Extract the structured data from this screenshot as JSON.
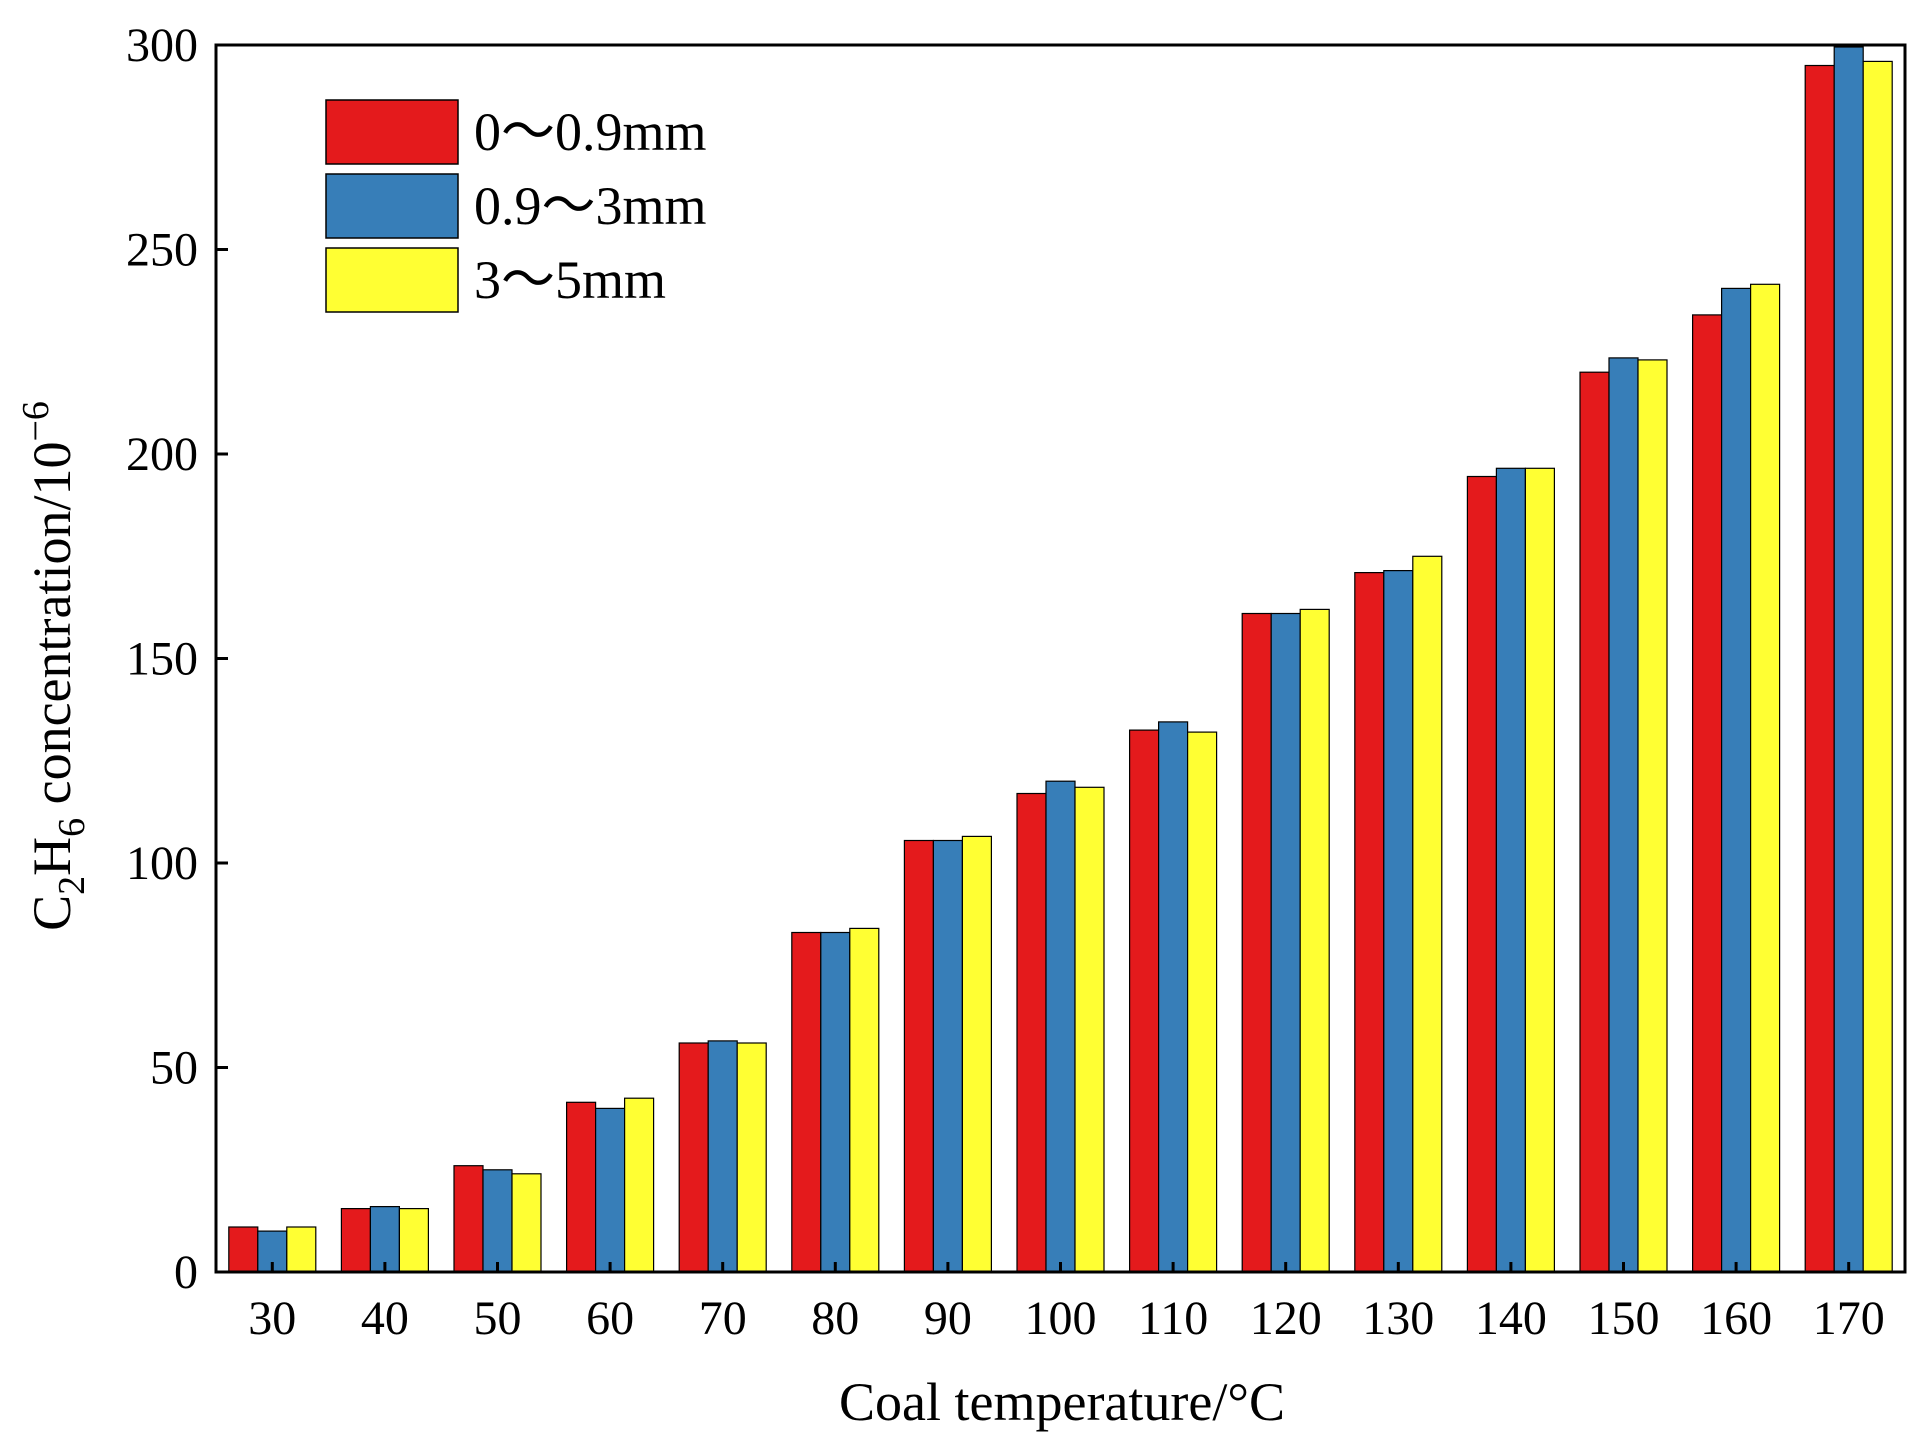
{
  "chart_data": {
    "type": "bar",
    "title": "",
    "xlabel": "Coal temperature/°C",
    "ylabel": {
      "prefix": "C",
      "sub1": "2",
      "mid": "H",
      "sub2": "6",
      "rest": " concentration/10",
      "sup": "−6"
    },
    "categories": [
      "30",
      "40",
      "50",
      "60",
      "70",
      "80",
      "90",
      "100",
      "110",
      "120",
      "130",
      "140",
      "150",
      "160",
      "170"
    ],
    "series": [
      {
        "name": "0～0.9mm",
        "color": "#e41a1c",
        "values": [
          11,
          15.5,
          26,
          41.5,
          56,
          83,
          105.5,
          117,
          132.5,
          161,
          171,
          194.5,
          220,
          234,
          295
        ]
      },
      {
        "name": "0.9～3mm",
        "color": "#377eb8",
        "values": [
          10,
          16,
          25,
          40,
          56.5,
          83,
          105.5,
          120,
          134.5,
          161,
          171.5,
          196.5,
          223.5,
          240.5,
          299.5
        ]
      },
      {
        "name": "3～5mm",
        "color": "#ffff33",
        "values": [
          11,
          15.5,
          24,
          42.5,
          56,
          84,
          106.5,
          118.5,
          132,
          162,
          175,
          196.5,
          223,
          241.5,
          296
        ]
      }
    ],
    "ylim": [
      0,
      300
    ],
    "yticks": [
      "0",
      "50",
      "100",
      "150",
      "200",
      "250",
      "300"
    ],
    "legend_position": "top-left",
    "grid": false
  }
}
